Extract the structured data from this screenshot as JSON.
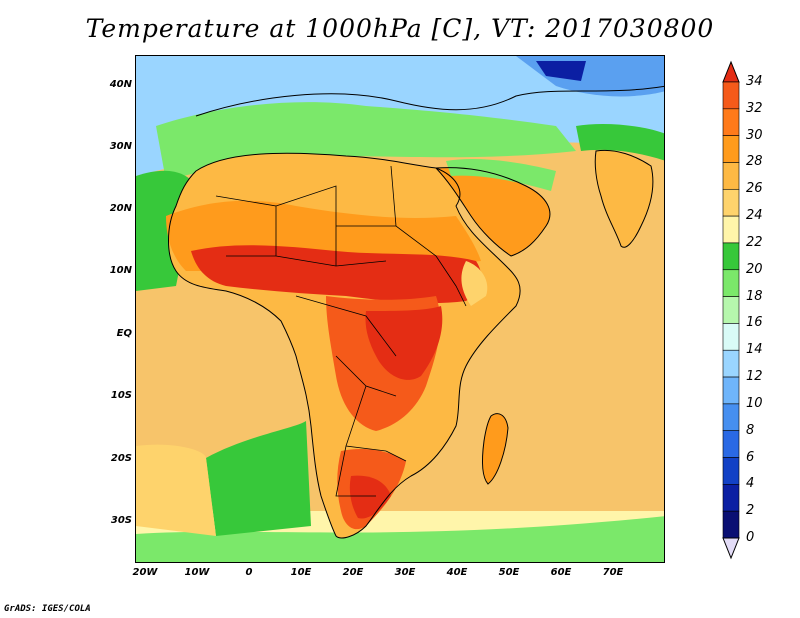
{
  "title": "Temperature at 1000hPa [C], VT: 2017030800",
  "credit": "GrADS: IGES/COLA",
  "map": {
    "lon_range": [
      -22,
      80
    ],
    "lat_range": [
      -37,
      45
    ],
    "x_ticks": [
      "20W",
      "10W",
      "0",
      "10E",
      "20E",
      "30E",
      "40E",
      "50E",
      "60E",
      "70E"
    ],
    "x_tick_values": [
      -20,
      -10,
      0,
      10,
      20,
      30,
      40,
      50,
      60,
      70
    ],
    "y_ticks": [
      "40N",
      "30N",
      "20N",
      "10N",
      "EQ",
      "10S",
      "20S",
      "30S"
    ],
    "y_tick_values": [
      40,
      30,
      20,
      10,
      0,
      -10,
      -20,
      -30
    ],
    "ocean_color": "#f8d070",
    "hot_colors": [
      "#ff9b1c",
      "#f55a1a",
      "#e42d14"
    ],
    "cool_colors": [
      "#37c83a",
      "#7be86a",
      "#9ad5ff",
      "#5aa0f0"
    ]
  },
  "colorbar": {
    "levels": [
      "34",
      "32",
      "30",
      "28",
      "26",
      "24",
      "22",
      "20",
      "18",
      "16",
      "14",
      "12",
      "10",
      "8",
      "6",
      "4",
      "2",
      "0"
    ],
    "colors": [
      "#e42d14",
      "#f55a1a",
      "#ff7a1a",
      "#ff9b1c",
      "#fdb944",
      "#fed36c",
      "#fff5aa",
      "#37c83a",
      "#7be86a",
      "#b6f7ad",
      "#d9fbf7",
      "#9ad5ff",
      "#6fb5fb",
      "#468ff0",
      "#2a69e4",
      "#1241c6",
      "#0b1fa3",
      "#0a0f73",
      "#e3dcf7"
    ]
  }
}
